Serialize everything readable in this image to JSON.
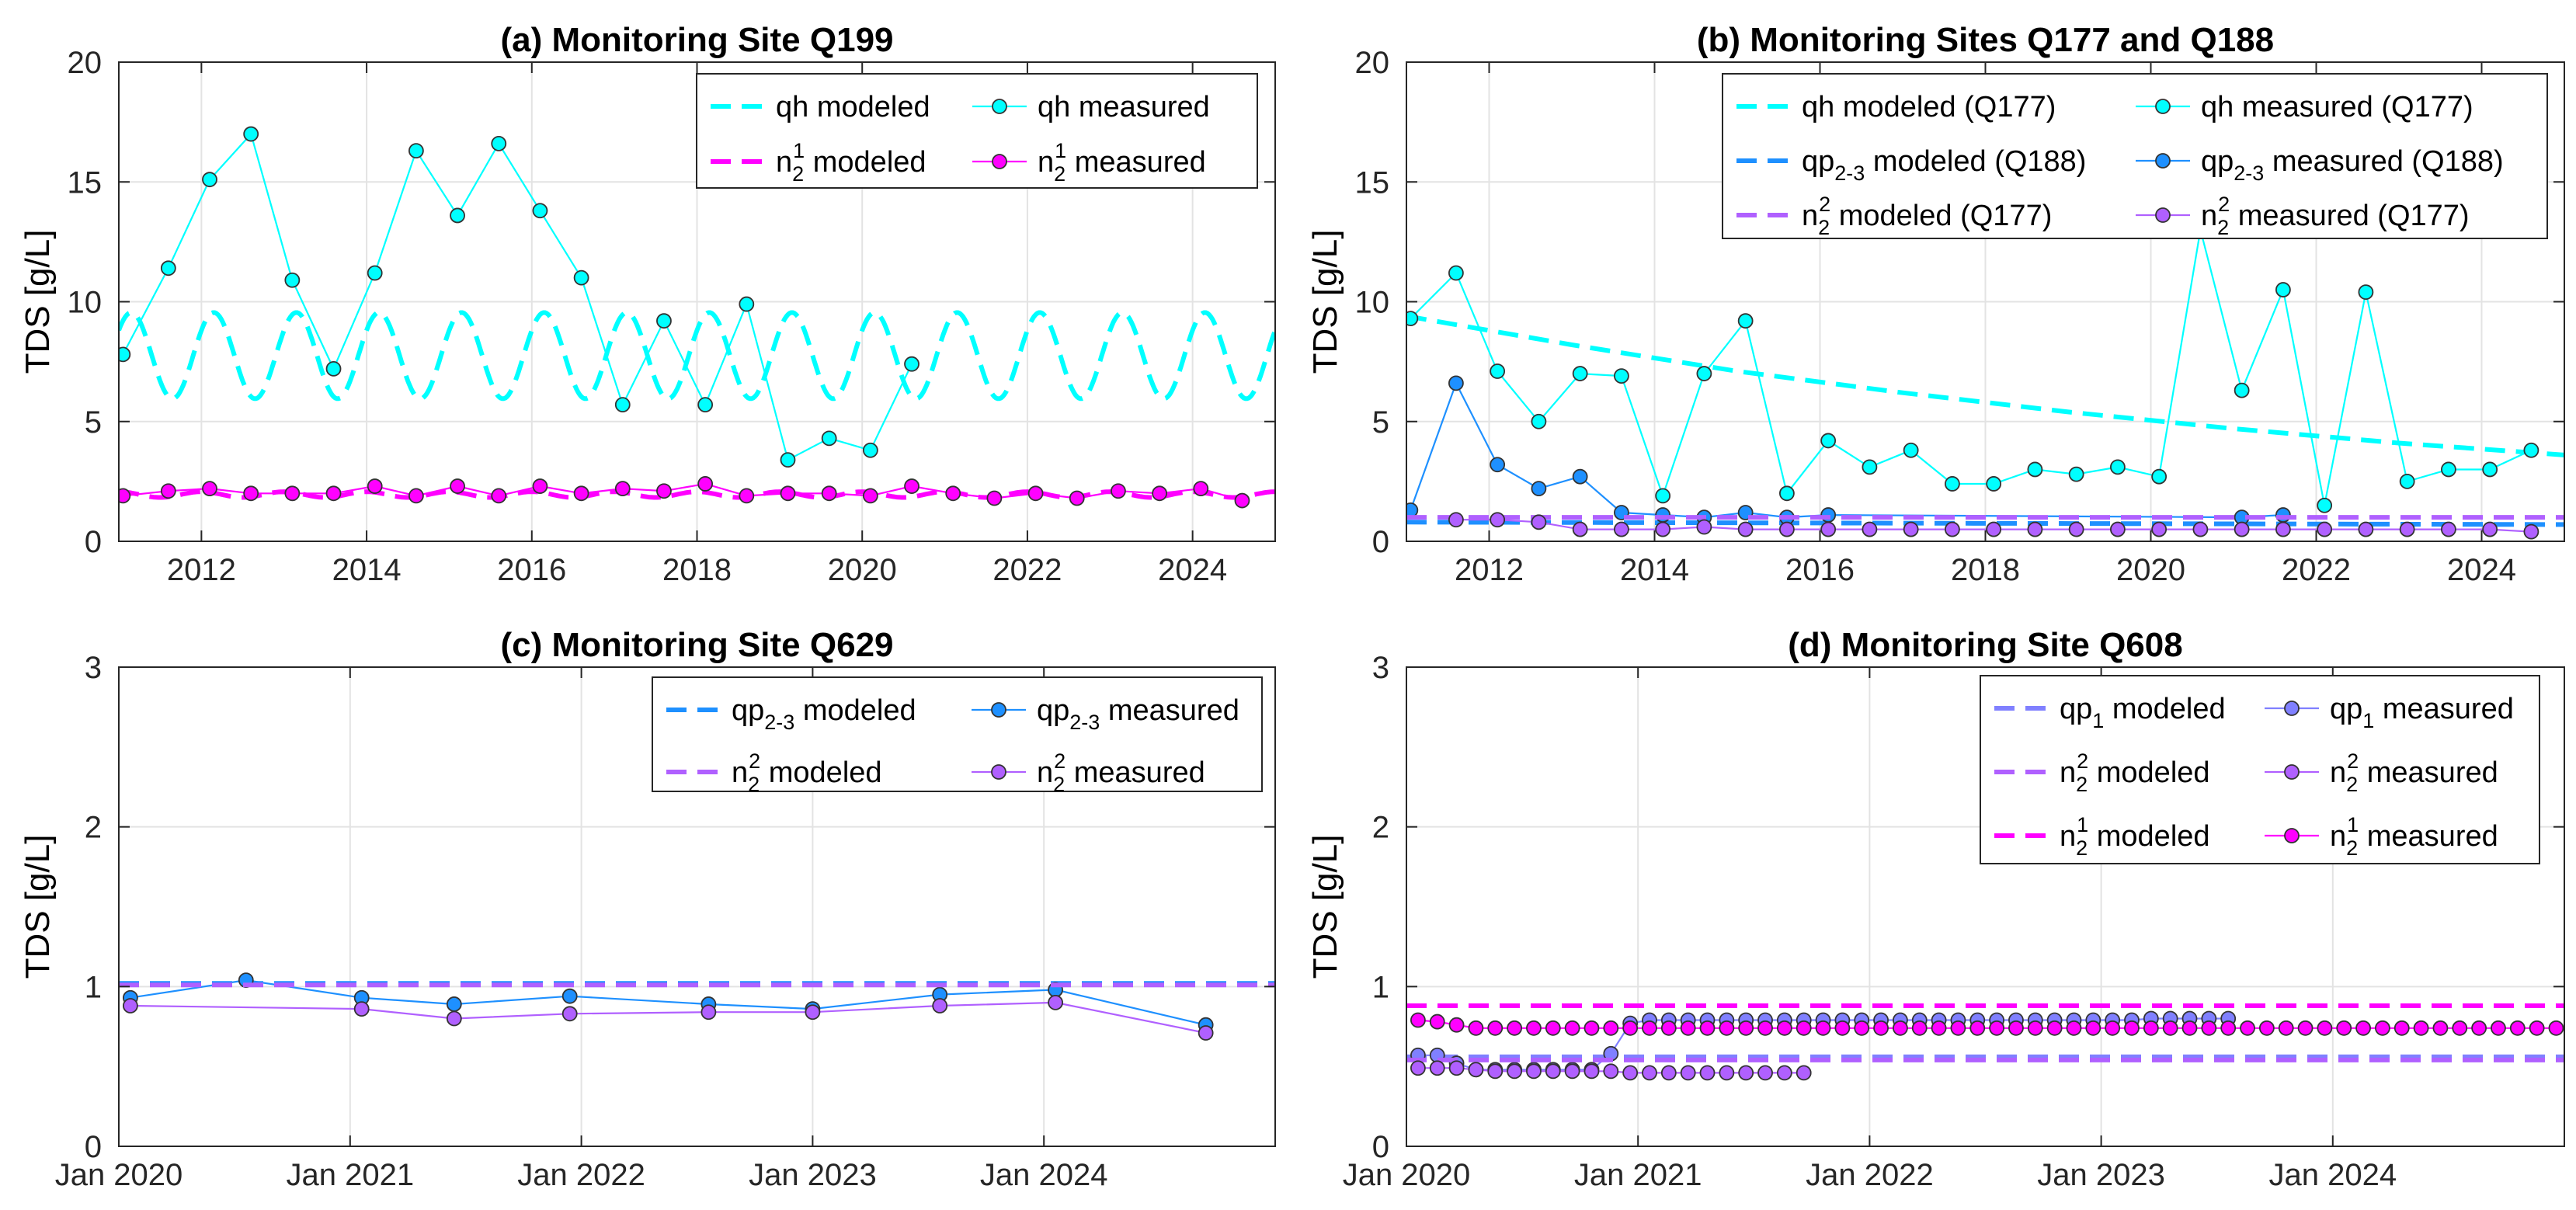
{
  "colors": {
    "cyan": "#00ffff",
    "blue": "#1e90ff",
    "purple": "#b060ff",
    "violet": "#8080ff",
    "magenta": "#ff00ff",
    "green": "#33cc33",
    "grid": "#e3e3e3"
  },
  "chart_data": [
    {
      "id": "a",
      "type": "line",
      "title": "(a) Monitoring Site Q199",
      "ylabel": "TDS [g/L]",
      "xlabel": "",
      "xlim": [
        2011.0,
        2025.0
      ],
      "ylim": [
        0,
        20
      ],
      "xticks": [
        2012,
        2014,
        2016,
        2018,
        2020,
        2022,
        2024
      ],
      "xtick_labels": [
        "2012",
        "2014",
        "2016",
        "2018",
        "2020",
        "2022",
        "2024"
      ],
      "yticks": [
        0,
        5,
        10,
        15,
        20
      ],
      "ytick_labels": [
        "0",
        "5",
        "10",
        "15",
        "20"
      ],
      "grid": true,
      "legend_position": "top-right",
      "legend_cols": 2,
      "series": [
        {
          "name": "qh modeled",
          "base": "qh modeled",
          "sub": "",
          "sup": "",
          "suffix": "",
          "style": "dashed",
          "color": "cyan",
          "periodic": {
            "mean": 7.75,
            "amp": 1.8,
            "period": 1.0,
            "phase": 0.15
          }
        },
        {
          "name": "qh measured",
          "base": "qh measured",
          "sub": "",
          "sup": "",
          "suffix": "",
          "style": "marker",
          "color": "cyan",
          "x": [
            2011.05,
            2011.6,
            2012.1,
            2012.6,
            2013.1,
            2013.6,
            2014.1,
            2014.6,
            2015.1,
            2015.6,
            2016.1,
            2016.6,
            2017.1,
            2017.6,
            2018.1,
            2018.6,
            2019.1,
            2019.6,
            2020.1,
            2020.6
          ],
          "y": [
            7.8,
            11.4,
            15.1,
            17.0,
            10.9,
            7.2,
            11.2,
            16.3,
            13.6,
            16.6,
            13.8,
            11.0,
            5.7,
            9.2,
            5.7,
            9.9,
            3.4,
            4.3,
            3.8,
            7.4
          ]
        },
        {
          "name": "n21 modeled",
          "base": "n",
          "sub": "2",
          "sup": "1",
          "suffix": " modeled",
          "style": "dashed",
          "color": "magenta",
          "periodic": {
            "mean": 1.95,
            "amp": 0.12,
            "period": 1.0,
            "phase": 0.0
          }
        },
        {
          "name": "n21 measured",
          "base": "n",
          "sub": "2",
          "sup": "1",
          "suffix": " measured",
          "style": "marker",
          "color": "magenta",
          "x": [
            2011.05,
            2011.6,
            2012.1,
            2012.6,
            2013.1,
            2013.6,
            2014.1,
            2014.6,
            2015.1,
            2015.6,
            2016.1,
            2016.6,
            2017.1,
            2017.6,
            2018.1,
            2018.6,
            2019.1,
            2019.6,
            2020.1,
            2020.6,
            2021.1,
            2021.6,
            2022.1,
            2022.6,
            2023.1,
            2023.6,
            2024.1,
            2024.6
          ],
          "y": [
            1.9,
            2.1,
            2.2,
            2.0,
            2.0,
            2.0,
            2.3,
            1.9,
            2.3,
            1.9,
            2.3,
            2.0,
            2.2,
            2.1,
            2.4,
            1.9,
            2.0,
            2.0,
            1.9,
            2.3,
            2.0,
            1.8,
            2.0,
            1.8,
            2.1,
            2.0,
            2.2,
            1.7
          ]
        }
      ]
    },
    {
      "id": "b",
      "type": "line",
      "title": "(b) Monitoring Sites Q177 and Q188",
      "ylabel": "TDS [g/L]",
      "xlabel": "",
      "xlim": [
        2011.0,
        2025.0
      ],
      "ylim": [
        0,
        20
      ],
      "xticks": [
        2012,
        2014,
        2016,
        2018,
        2020,
        2022,
        2024
      ],
      "xtick_labels": [
        "2012",
        "2014",
        "2016",
        "2018",
        "2020",
        "2022",
        "2024"
      ],
      "yticks": [
        0,
        5,
        10,
        15,
        20
      ],
      "ytick_labels": [
        "0",
        "5",
        "10",
        "15",
        "20"
      ],
      "grid": true,
      "legend_position": "top-right",
      "legend_cols": 2,
      "series": [
        {
          "name": "qh modeled (Q177)",
          "base": "qh modeled (Q177)",
          "sub": "",
          "sup": "",
          "suffix": "",
          "style": "dashed",
          "color": "cyan",
          "x": [
            2011.0,
            2013.0,
            2015.0,
            2017.0,
            2019.0,
            2021.0,
            2023.0,
            2025.0
          ],
          "y": [
            9.4,
            8.2,
            7.1,
            6.2,
            5.4,
            4.7,
            4.1,
            3.6
          ]
        },
        {
          "name": "qh measured (Q177)",
          "base": "qh measured (Q177)",
          "sub": "",
          "sup": "",
          "suffix": "",
          "style": "marker",
          "color": "cyan",
          "x": [
            2011.05,
            2011.6,
            2012.1,
            2012.6,
            2013.1,
            2013.6,
            2014.1,
            2014.6,
            2015.1,
            2015.6,
            2016.1,
            2016.6,
            2017.1,
            2017.6,
            2018.1,
            2018.6,
            2019.1,
            2019.6,
            2020.1,
            2020.6,
            2021.1,
            2021.6,
            2022.1,
            2022.6,
            2023.1,
            2023.6,
            2024.1,
            2024.6
          ],
          "y": [
            9.3,
            11.2,
            7.1,
            5.0,
            7.0,
            6.9,
            1.9,
            7.0,
            9.2,
            2.0,
            4.2,
            3.1,
            3.8,
            2.4,
            2.4,
            3.0,
            2.8,
            3.1,
            2.7,
            13.0,
            6.3,
            10.5,
            1.5,
            10.4,
            2.5,
            3.0,
            3.0,
            3.8
          ]
        },
        {
          "name": "qp2-3 modeled (Q188)",
          "base": "qp",
          "sub": "2-3",
          "sup": "",
          "suffix": " modeled (Q188)",
          "style": "dashed",
          "color": "blue",
          "x": [
            2011.0,
            2025.0
          ],
          "y": [
            0.8,
            0.7
          ]
        },
        {
          "name": "qp2-3 measured (Q188)",
          "base": "qp",
          "sub": "2-3",
          "sup": "",
          "suffix": " measured (Q188)",
          "style": "marker",
          "color": "blue",
          "x": [
            2011.05,
            2011.6,
            2012.1,
            2012.6,
            2013.1,
            2013.6,
            2014.1,
            2014.6,
            2015.1,
            2015.6,
            2016.1,
            2021.1,
            2021.6
          ],
          "y": [
            1.3,
            6.6,
            3.2,
            2.2,
            2.7,
            1.2,
            1.1,
            1.0,
            1.2,
            1.0,
            1.1,
            1.0,
            1.1
          ]
        },
        {
          "name": "n22 modeled (Q177)",
          "base": "n",
          "sub": "2",
          "sup": "2",
          "suffix": " modeled (Q177)",
          "style": "dashed",
          "color": "purple",
          "x": [
            2011.0,
            2025.0
          ],
          "y": [
            1.0,
            1.0
          ]
        },
        {
          "name": "n22 measured (Q177)",
          "base": "n",
          "sub": "2",
          "sup": "2",
          "suffix": " measured (Q177)",
          "style": "marker",
          "color": "purple",
          "x": [
            2011.6,
            2012.1,
            2012.6,
            2013.1,
            2013.6,
            2014.1,
            2014.6,
            2015.1,
            2015.6,
            2016.1,
            2016.6,
            2017.1,
            2017.6,
            2018.1,
            2018.6,
            2019.1,
            2019.6,
            2020.1,
            2020.6,
            2021.1,
            2021.6,
            2022.1,
            2022.6,
            2023.1,
            2023.6,
            2024.1,
            2024.6
          ],
          "y": [
            0.9,
            0.9,
            0.8,
            0.5,
            0.5,
            0.5,
            0.6,
            0.5,
            0.5,
            0.5,
            0.5,
            0.5,
            0.5,
            0.5,
            0.5,
            0.5,
            0.5,
            0.5,
            0.5,
            0.5,
            0.5,
            0.5,
            0.5,
            0.5,
            0.5,
            0.5,
            0.4
          ]
        }
      ]
    },
    {
      "id": "c",
      "type": "line",
      "title": "(c) Monitoring Site Q629",
      "ylabel": "TDS [g/L]",
      "xlabel": "",
      "xlim": [
        2020.0,
        2025.0
      ],
      "ylim": [
        0,
        3
      ],
      "xticks": [
        2020.0,
        2021.0,
        2022.0,
        2023.0,
        2024.0
      ],
      "xtick_labels": [
        "Jan 2020",
        "Jan 2021",
        "Jan 2022",
        "Jan 2023",
        "Jan 2024"
      ],
      "yticks": [
        0,
        1,
        2,
        3
      ],
      "ytick_labels": [
        "0",
        "1",
        "2",
        "3"
      ],
      "grid": true,
      "legend_position": "top-right",
      "legend_cols": 2,
      "series": [
        {
          "name": "qp2-3 modeled",
          "base": "qp",
          "sub": "2-3",
          "sup": "",
          "suffix": " modeled",
          "style": "dashed",
          "color": "blue",
          "x": [
            2020.0,
            2025.0
          ],
          "y": [
            1.02,
            1.02
          ]
        },
        {
          "name": "qp2-3 measured",
          "base": "qp",
          "sub": "2-3",
          "sup": "",
          "suffix": " measured",
          "style": "marker",
          "color": "blue",
          "x": [
            2020.05,
            2020.55,
            2021.05,
            2021.45,
            2021.95,
            2022.55,
            2023.0,
            2023.55,
            2024.05,
            2024.7
          ],
          "y": [
            0.93,
            1.04,
            0.93,
            0.89,
            0.94,
            0.89,
            0.86,
            0.95,
            0.98,
            0.76
          ]
        },
        {
          "name": "n22 modeled",
          "base": "n",
          "sub": "2",
          "sup": "2",
          "suffix": " modeled",
          "style": "dashed",
          "color": "purple",
          "x": [
            2020.0,
            2025.0
          ],
          "y": [
            1.01,
            1.01
          ]
        },
        {
          "name": "n22 measured",
          "base": "n",
          "sub": "2",
          "sup": "2",
          "suffix": " measured",
          "style": "marker",
          "color": "purple",
          "x": [
            2020.05,
            2021.05,
            2021.45,
            2021.95,
            2022.55,
            2023.0,
            2023.55,
            2024.05,
            2024.7
          ],
          "y": [
            0.88,
            0.86,
            0.8,
            0.83,
            0.84,
            0.84,
            0.88,
            0.9,
            0.71
          ]
        }
      ]
    },
    {
      "id": "d",
      "type": "line",
      "title": "(d) Monitoring Site Q608",
      "ylabel": "TDS [g/L]",
      "xlabel": "",
      "xlim": [
        2020.0,
        2025.0
      ],
      "ylim": [
        0,
        3
      ],
      "xticks": [
        2020.0,
        2021.0,
        2022.0,
        2023.0,
        2024.0
      ],
      "xtick_labels": [
        "Jan 2020",
        "Jan 2021",
        "Jan 2022",
        "Jan 2023",
        "Jan 2024"
      ],
      "yticks": [
        0,
        1,
        2,
        3
      ],
      "ytick_labels": [
        "0",
        "1",
        "2",
        "3"
      ],
      "grid": true,
      "legend_position": "top-right",
      "legend_cols": 2,
      "series": [
        {
          "name": "qp1 modeled",
          "base": "qp",
          "sub": "1",
          "sup": "",
          "suffix": " modeled",
          "style": "dashed",
          "color": "violet",
          "x": [
            2020.0,
            2025.0
          ],
          "y": [
            0.56,
            0.56
          ]
        },
        {
          "name": "qp1 measured",
          "base": "qp",
          "sub": "1",
          "sup": "",
          "suffix": " measured",
          "style": "marker",
          "color": "violet",
          "generated": {
            "start": 2020.05,
            "step": 0.0833,
            "values": [
              0.57,
              0.57,
              0.52,
              0.48,
              0.48,
              0.48,
              0.48,
              0.48,
              0.48,
              0.48,
              0.58,
              0.77,
              0.79,
              0.79,
              0.79,
              0.79,
              0.79,
              0.79,
              0.79,
              0.79,
              0.79,
              0.79,
              0.79,
              0.79,
              0.79,
              0.79,
              0.79,
              0.79,
              0.79,
              0.79,
              0.79,
              0.79,
              0.79,
              0.79,
              0.79,
              0.79,
              0.79,
              0.79,
              0.8,
              0.8,
              0.8,
              0.8,
              0.8
            ]
          }
        },
        {
          "name": "n22 modeled",
          "base": "n",
          "sub": "2",
          "sup": "2",
          "suffix": " modeled",
          "style": "dashed",
          "color": "purple",
          "x": [
            2020.0,
            2025.0
          ],
          "y": [
            0.54,
            0.54
          ]
        },
        {
          "name": "n22 measured",
          "base": "n",
          "sub": "2",
          "sup": "2",
          "suffix": " measured",
          "style": "marker",
          "color": "purple",
          "generated": {
            "start": 2020.05,
            "step": 0.0833,
            "values": [
              0.49,
              0.49,
              0.49,
              0.48,
              0.47,
              0.47,
              0.47,
              0.47,
              0.47,
              0.47,
              0.47,
              0.46,
              0.46,
              0.46,
              0.46,
              0.46,
              0.46,
              0.46,
              0.46,
              0.46,
              0.46
            ]
          }
        },
        {
          "name": "n21 modeled",
          "base": "n",
          "sub": "2",
          "sup": "1",
          "suffix": " modeled",
          "style": "dashed",
          "color": "magenta",
          "x": [
            2020.0,
            2025.0
          ],
          "y": [
            0.88,
            0.88
          ]
        },
        {
          "name": "n21 measured",
          "base": "n",
          "sub": "2",
          "sup": "1",
          "suffix": " measured",
          "style": "marker",
          "color": "magenta",
          "generated": {
            "start": 2020.05,
            "step": 0.0833,
            "values": [
              0.79,
              0.78,
              0.76,
              0.74,
              0.74,
              0.74,
              0.74,
              0.74,
              0.74,
              0.74,
              0.74,
              0.74,
              0.74,
              0.74,
              0.74,
              0.74,
              0.74,
              0.74,
              0.74,
              0.74,
              0.74,
              0.74,
              0.74,
              0.74,
              0.74,
              0.74,
              0.74,
              0.74,
              0.74,
              0.74,
              0.74,
              0.74,
              0.74,
              0.74,
              0.74,
              0.74,
              0.74,
              0.74,
              0.74,
              0.74,
              0.74,
              0.74,
              0.74,
              0.74,
              0.74,
              0.74,
              0.74,
              0.74,
              0.74,
              0.74,
              0.74,
              0.74,
              0.74,
              0.74,
              0.74,
              0.74,
              0.74,
              0.74,
              0.74,
              0.74
            ]
          }
        }
      ]
    }
  ]
}
